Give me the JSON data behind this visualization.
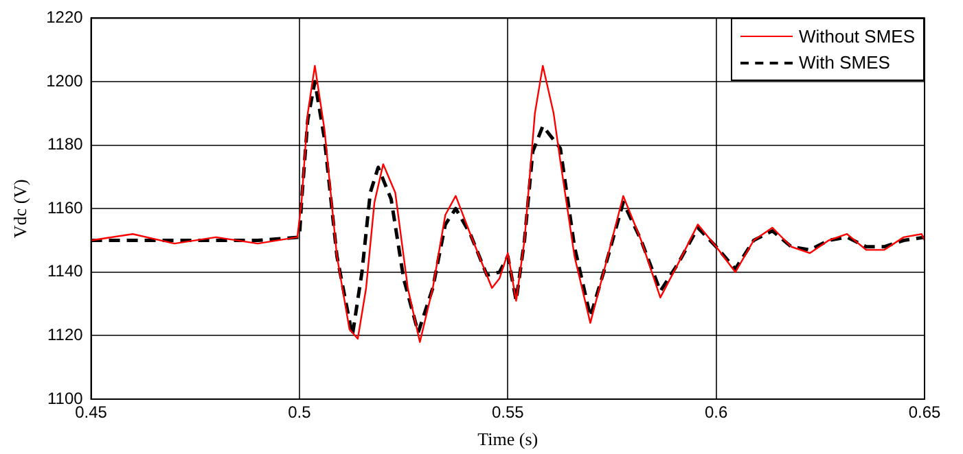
{
  "chart_data": {
    "type": "line",
    "xlabel": "Time (s)",
    "ylabel": "Vdc (V)",
    "xlim": [
      0.45,
      0.65
    ],
    "xticks": [
      0.45,
      0.5,
      0.55,
      0.6,
      0.65
    ],
    "ylim": [
      1100,
      1220
    ],
    "yticks": [
      1100,
      1120,
      1140,
      1160,
      1180,
      1200,
      1220
    ],
    "grid": true,
    "legend": "top right",
    "marker": "none",
    "series": [
      {
        "name": "Without SMES",
        "color": "#ff0000",
        "line_style": "solid",
        "x": [
          0.45,
          0.46,
          0.47,
          0.48,
          0.49,
          0.4995,
          0.5005,
          0.502,
          0.5037,
          0.506,
          0.509,
          0.512,
          0.514,
          0.516,
          0.518,
          0.5201,
          0.523,
          0.526,
          0.5289,
          0.532,
          0.535,
          0.5375,
          0.541,
          0.5462,
          0.548,
          0.55,
          0.552,
          0.554,
          0.5565,
          0.5584,
          0.561,
          0.5626,
          0.566,
          0.5698,
          0.573,
          0.5777,
          0.582,
          0.5866,
          0.591,
          0.5956,
          0.6,
          0.6046,
          0.609,
          0.6135,
          0.618,
          0.6225,
          0.627,
          0.6314,
          0.636,
          0.6403,
          0.645,
          0.6493,
          0.65
        ],
        "values": [
          1150,
          1152,
          1149,
          1151,
          1149,
          1151,
          1162,
          1190,
          1205,
          1185,
          1145,
          1122,
          1119,
          1135,
          1162,
          1174,
          1165,
          1135,
          1118,
          1135,
          1158,
          1164,
          1152,
          1135,
          1138,
          1146,
          1131,
          1150,
          1190,
          1205,
          1190,
          1175,
          1145,
          1124,
          1140,
          1164,
          1150,
          1132,
          1143,
          1155,
          1148,
          1140,
          1150,
          1154,
          1148,
          1146,
          1150,
          1152,
          1147,
          1147,
          1151,
          1152,
          1150
        ]
      },
      {
        "name": "With SMES",
        "color": "#000000",
        "line_style": "dashed",
        "x": [
          0.45,
          0.47,
          0.49,
          0.5,
          0.5005,
          0.502,
          0.5037,
          0.506,
          0.509,
          0.5127,
          0.515,
          0.517,
          0.5189,
          0.522,
          0.525,
          0.5285,
          0.532,
          0.535,
          0.5375,
          0.541,
          0.545,
          0.548,
          0.55,
          0.552,
          0.554,
          0.556,
          0.5584,
          0.5626,
          0.566,
          0.5698,
          0.573,
          0.5777,
          0.582,
          0.5866,
          0.591,
          0.5956,
          0.6,
          0.6046,
          0.609,
          0.6135,
          0.618,
          0.6225,
          0.627,
          0.6314,
          0.636,
          0.6403,
          0.645,
          0.65
        ],
        "values": [
          1150,
          1150,
          1150,
          1151,
          1162,
          1188,
          1200,
          1182,
          1145,
          1120,
          1140,
          1165,
          1173,
          1163,
          1138,
          1121,
          1135,
          1155,
          1160,
          1152,
          1139,
          1140,
          1145,
          1131,
          1150,
          1178,
          1186,
          1179,
          1148,
          1126,
          1140,
          1162,
          1150,
          1134,
          1143,
          1154,
          1148,
          1141,
          1150,
          1153,
          1148,
          1147,
          1150,
          1151,
          1148,
          1148,
          1150,
          1151
        ]
      }
    ]
  }
}
